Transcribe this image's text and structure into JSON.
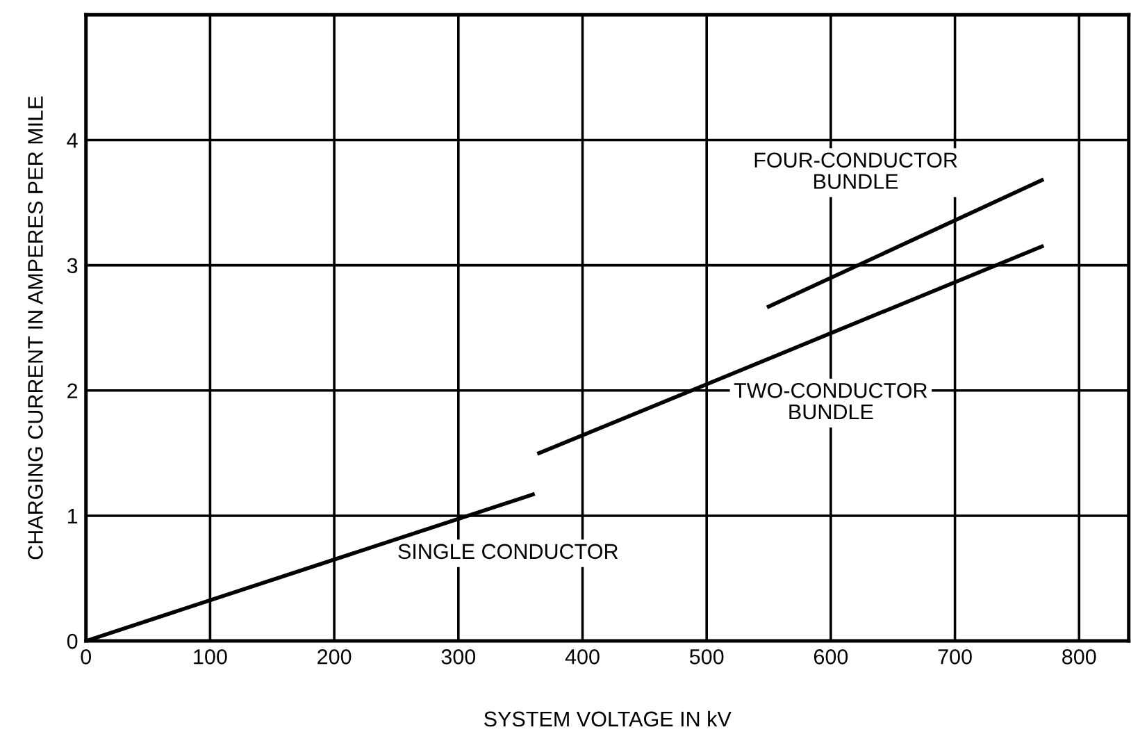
{
  "chart_data": {
    "type": "line",
    "xlabel": "SYSTEM VOLTAGE IN kV",
    "ylabel": "CHARGING CURRENT IN AMPERES PER MILE",
    "xlim": [
      0,
      840
    ],
    "ylim": [
      0,
      5
    ],
    "xticks": [
      0,
      100,
      200,
      300,
      400,
      500,
      600,
      700,
      800
    ],
    "yticks": [
      0,
      1,
      2,
      3,
      4
    ],
    "grid": true,
    "line_style": "solid",
    "marker": "none",
    "series": [
      {
        "name": "SINGLE CONDUCTOR",
        "color": "#000000",
        "x": [
          0,
          360
        ],
        "values": [
          0,
          1.17
        ]
      },
      {
        "name": "TWO-CONDUCTOR\nBUNDLE",
        "color": "#000000",
        "x": [
          365,
          770
        ],
        "values": [
          1.5,
          3.15
        ]
      },
      {
        "name": "FOUR-CONDUCTOR\nBUNDLE",
        "color": "#000000",
        "x": [
          550,
          770
        ],
        "values": [
          2.67,
          3.68
        ]
      }
    ]
  }
}
